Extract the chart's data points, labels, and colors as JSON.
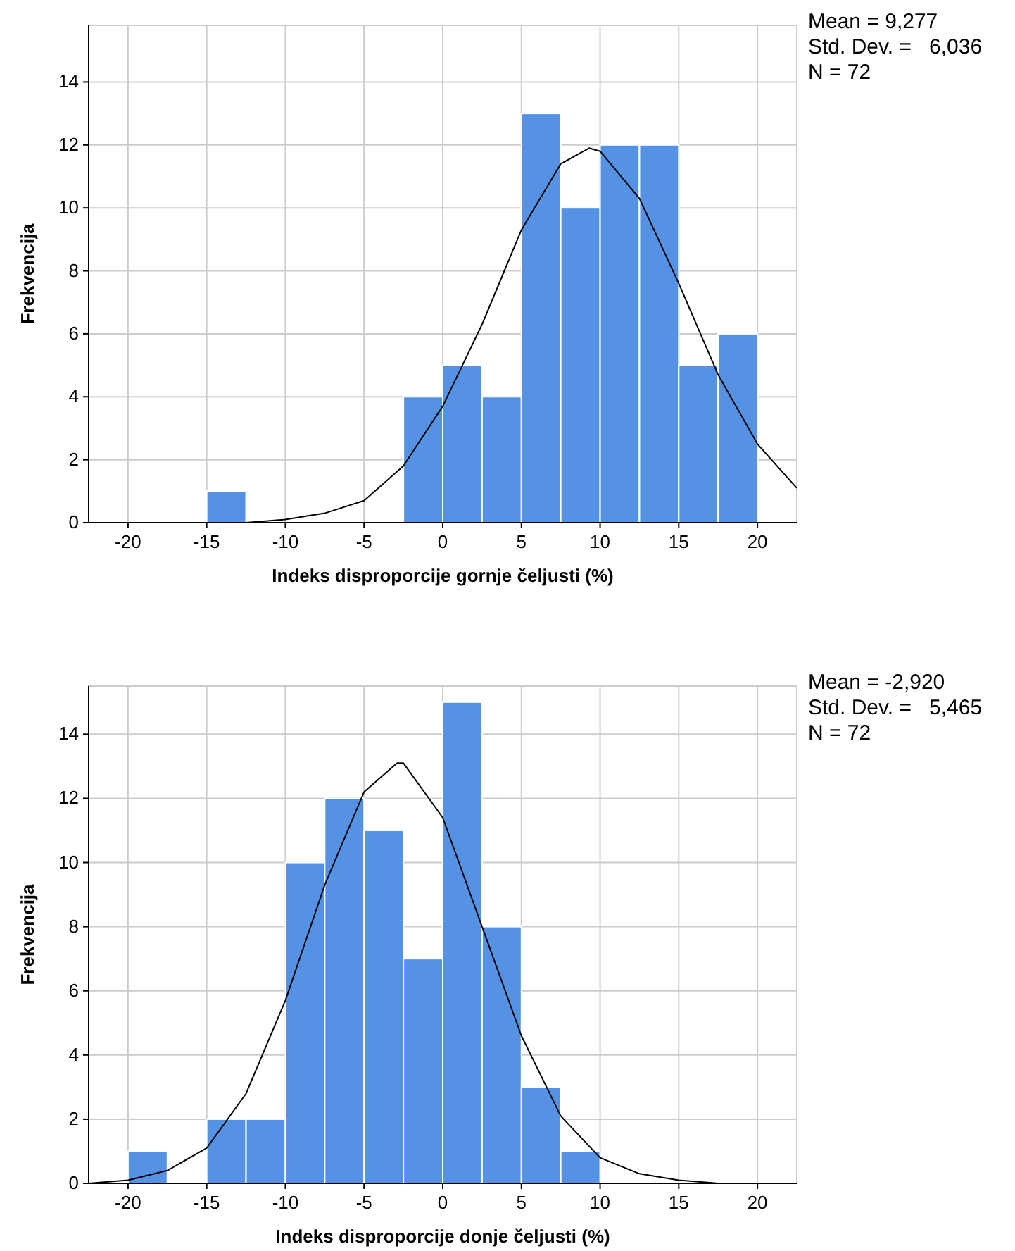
{
  "chart_data": [
    {
      "type": "histogram",
      "xlabel": "Indeks disproporcije gornje čeljusti (%)",
      "ylabel": "Frekvencija",
      "bins": [
        -15,
        -12.5,
        -10,
        -7.5,
        -5,
        -2.5,
        0,
        2.5,
        5,
        7.5,
        10,
        12.5,
        15,
        17.5,
        20
      ],
      "values": [
        1,
        0,
        0,
        0,
        0,
        4,
        5,
        4,
        13,
        10,
        12,
        12,
        5,
        6
      ],
      "color": "#5592e3",
      "series": [
        {
          "type": "line",
          "color": "#000000",
          "x": [
            -22.5,
            -20,
            -17.5,
            -15,
            -12.5,
            -10,
            -7.5,
            -5,
            -2.5,
            0,
            2.5,
            5,
            7.5,
            9.3,
            10,
            12.5,
            15,
            17.5,
            20,
            22.5
          ],
          "values": [
            0,
            0,
            0,
            0,
            0,
            0.1,
            0.3,
            0.7,
            1.8,
            3.7,
            6.3,
            9.3,
            11.4,
            11.9,
            11.8,
            10.3,
            7.6,
            4.7,
            2.5,
            1.1
          ]
        }
      ],
      "xlim": [
        -22.5,
        22.5
      ],
      "ylim": [
        0,
        15.8
      ],
      "xticks": [
        -20,
        -15,
        -10,
        -5,
        0,
        5,
        10,
        15,
        20
      ],
      "yticks": [
        0,
        2,
        4,
        6,
        8,
        10,
        12,
        14
      ],
      "grid": true,
      "annotations": [
        "Mean = 9,277",
        "Std. Dev. =   6,036",
        "N = 72"
      ]
    },
    {
      "type": "histogram",
      "xlabel": "Indeks disproporcije donje čeljusti (%)",
      "ylabel": "Frekvencija",
      "bins": [
        -20,
        -17.5,
        -15,
        -12.5,
        -10,
        -7.5,
        -5,
        -2.5,
        0,
        2.5,
        5,
        7.5,
        10
      ],
      "values": [
        1,
        0,
        2,
        2,
        10,
        12,
        11,
        7,
        15,
        8,
        3,
        1
      ],
      "color": "#5592e3",
      "series": [
        {
          "type": "line",
          "color": "#000000",
          "x": [
            -22.5,
            -20,
            -17.5,
            -15,
            -12.5,
            -10,
            -7.5,
            -5,
            -2.9,
            -2.5,
            0,
            2.5,
            5,
            7.5,
            10,
            12.5,
            15,
            17.5,
            20,
            22.5
          ],
          "values": [
            0,
            0.1,
            0.4,
            1.1,
            2.8,
            5.7,
            9.3,
            12.2,
            13.1,
            13.1,
            11.4,
            8,
            4.6,
            2.1,
            0.8,
            0.3,
            0.1,
            0,
            0,
            0
          ]
        }
      ],
      "xlim": [
        -22.5,
        22.5
      ],
      "ylim": [
        0,
        15.5
      ],
      "xticks": [
        -20,
        -15,
        -10,
        -5,
        0,
        5,
        10,
        15,
        20
      ],
      "yticks": [
        0,
        2,
        4,
        6,
        8,
        10,
        12,
        14
      ],
      "grid": true,
      "annotations": [
        "Mean = -2,920",
        "Std. Dev. =   5,465",
        "N = 72"
      ]
    }
  ]
}
